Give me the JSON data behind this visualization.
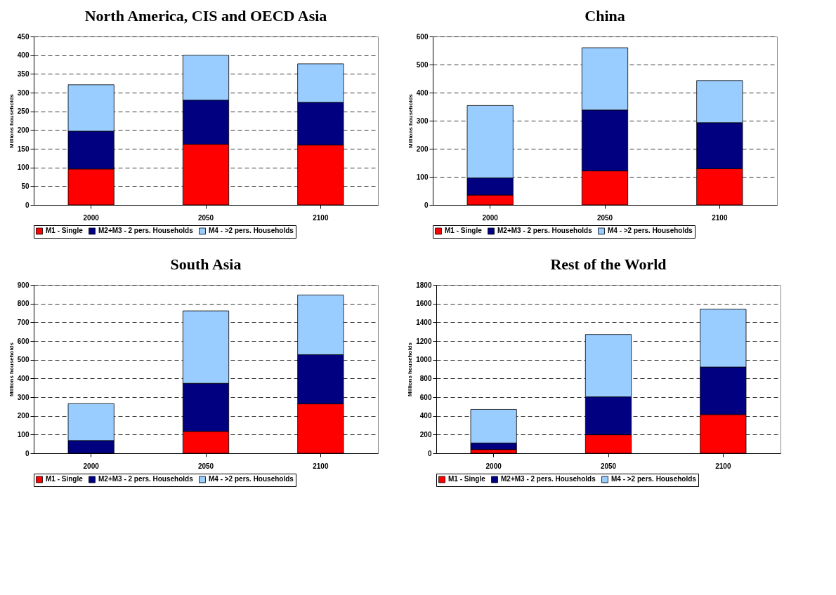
{
  "chart_data": [
    {
      "type": "bar",
      "title": "North America, CIS and OECD Asia",
      "ylabel": "Millions households",
      "categories": [
        "2000",
        "2050",
        "2100"
      ],
      "stacked": true,
      "grid": "y",
      "legend": "bottom",
      "ylim": [
        0,
        450
      ],
      "yticks": [
        0,
        50,
        100,
        150,
        200,
        250,
        300,
        350,
        400,
        450
      ],
      "series": [
        {
          "name": "M1 - Single",
          "color": "#ff0000",
          "values": [
            96,
            162,
            160
          ]
        },
        {
          "name": "M2+M3 - 2 pers. Households",
          "color": "#000080",
          "values": [
            101,
            118,
            114
          ]
        },
        {
          "name": "M4 - >2 pers. Households",
          "color": "#99ccff",
          "values": [
            124,
            120,
            103
          ]
        }
      ]
    },
    {
      "type": "bar",
      "title": "China",
      "ylabel": "Millions households",
      "categories": [
        "2000",
        "2050",
        "2100"
      ],
      "stacked": true,
      "grid": "y",
      "legend": "bottom",
      "ylim": [
        0,
        600
      ],
      "yticks": [
        0,
        100,
        200,
        300,
        400,
        500,
        600
      ],
      "series": [
        {
          "name": "M1 - Single",
          "color": "#ff0000",
          "values": [
            35,
            121,
            129
          ]
        },
        {
          "name": "M2+M3 - 2 pers. Households",
          "color": "#000080",
          "values": [
            61,
            217,
            164
          ]
        },
        {
          "name": "M4 - >2 pers. Households",
          "color": "#99ccff",
          "values": [
            258,
            222,
            150
          ]
        }
      ]
    },
    {
      "type": "bar",
      "title": "South Asia",
      "ylabel": "Millions households",
      "categories": [
        "2000",
        "2050",
        "2100"
      ],
      "stacked": true,
      "grid": "y",
      "legend": "bottom",
      "ylim": [
        0,
        900
      ],
      "yticks": [
        0,
        100,
        200,
        300,
        400,
        500,
        600,
        700,
        800,
        900
      ],
      "series": [
        {
          "name": "M1 - Single",
          "color": "#ff0000",
          "values": [
            null,
            117,
            264
          ]
        },
        {
          "name": "M2+M3 - 2 pers. Households",
          "color": "#000080",
          "values": [
            68,
            257,
            263
          ]
        },
        {
          "name": "M4 - >2 pers. Households",
          "color": "#99ccff",
          "values": [
            197,
            387,
            319
          ]
        }
      ]
    },
    {
      "type": "bar",
      "title": "Rest of the World",
      "ylabel": "Millions households",
      "categories": [
        "2000",
        "2050",
        "2100"
      ],
      "stacked": true,
      "grid": "y",
      "legend": "bottom",
      "ylim": [
        0,
        1800
      ],
      "yticks": [
        0,
        200,
        400,
        600,
        800,
        1000,
        1200,
        1400,
        1600,
        1800
      ],
      "series": [
        {
          "name": "M1 - Single",
          "color": "#ff0000",
          "values": [
            40,
            198,
            414
          ]
        },
        {
          "name": "M2+M3 - 2 pers. Households",
          "color": "#000080",
          "values": [
            70,
            405,
            508
          ]
        },
        {
          "name": "M4 - >2 pers. Households",
          "color": "#99ccff",
          "values": [
            359,
            667,
            619
          ]
        }
      ]
    }
  ]
}
